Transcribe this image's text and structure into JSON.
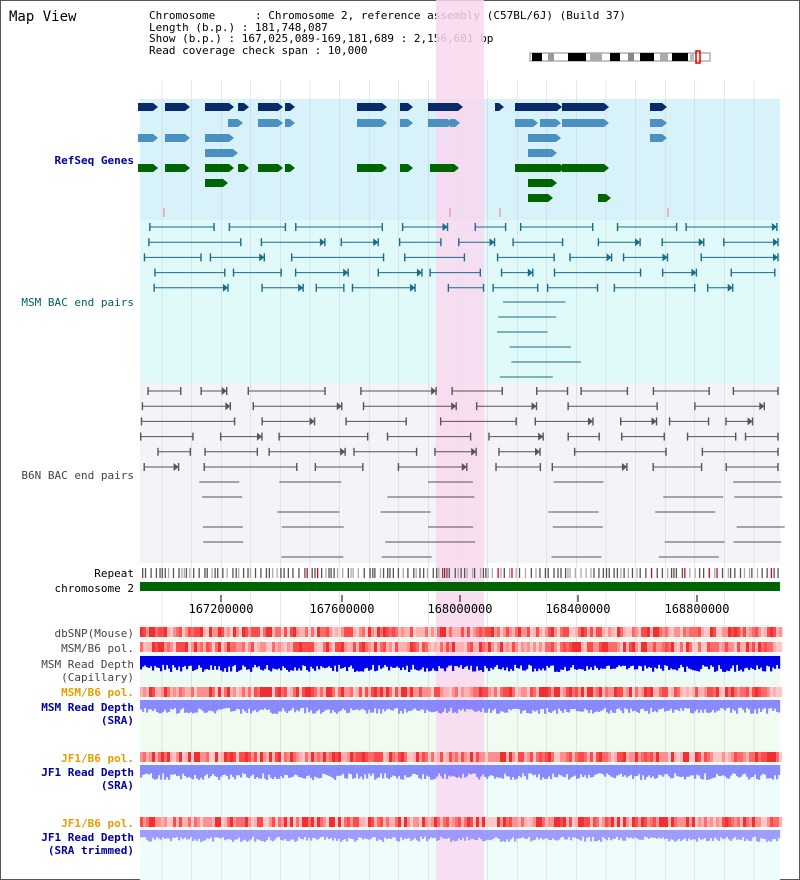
{
  "title": "Map View",
  "info": {
    "chromosome_line": "Chromosome      : Chromosome 2, reference assembly (C57BL/6J) (Build 37)",
    "length_line": "Length (b.p.) : 181,748,087",
    "show_line": "Show (b.p.) : 167,025,089-169,181,689 : 2,156,601 bp",
    "coverage_line": "Read coverage check span : 10,000"
  },
  "tracks": {
    "refseq": "RefSeq Genes",
    "msm_bac": "MSM BAC end pairs",
    "b6n_bac": "B6N BAC end pairs",
    "repeat": "Repeat",
    "chromosome": "chromosome 2",
    "dbsnp": "dbSNP(Mouse)",
    "msm_b6_pol_1": "MSM/B6 pol.",
    "msm_depth_cap_1": "MSM Read Depth",
    "msm_depth_cap_2": "(Capillary)",
    "msm_b6_pol_2": "MSM/B6 pol.",
    "msm_depth_sra_1": "MSM Read Depth",
    "msm_depth_sra_2": "(SRA)",
    "jf1_b6_pol_1": "JF1/B6 pol.",
    "jf1_depth_sra_1": "JF1 Read Depth",
    "jf1_depth_sra_2": "(SRA)",
    "jf1_b6_pol_2": "JF1/B6 pol.",
    "jf1_depth_trim_1": "JF1 Read Depth",
    "jf1_depth_trim_2": "(SRA trimmed)"
  },
  "axis": {
    "ticks": [
      "167200000",
      "167600000",
      "168000000",
      "168400000",
      "168800000"
    ]
  },
  "colors": {
    "refseq_bg": "#d8f2fa",
    "msm_bg": "#e0fafa",
    "b6n_bg": "#f4f4f8",
    "highlight": "#f8d8f0",
    "chrom_bar": "#006400",
    "gene_dark": "#0a2a6a",
    "gene_light": "#4a90c0",
    "gene_green": "#006400",
    "msm_line": "#1a6a8a",
    "b6n_line": "#555555",
    "depth_dark": "#0000ee",
    "depth_light": "#7070ff"
  }
}
